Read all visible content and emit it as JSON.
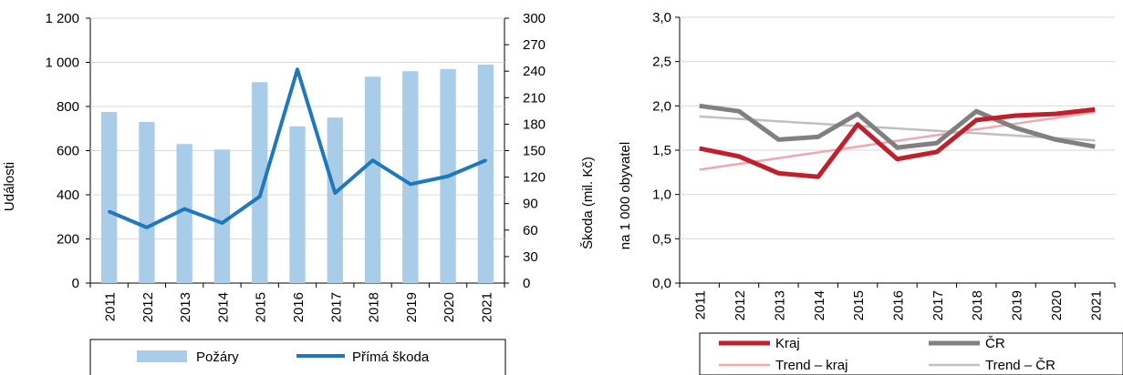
{
  "chart_data": [
    {
      "type": "bar",
      "categories": [
        "2011",
        "2012",
        "2013",
        "2014",
        "2015",
        "2016",
        "2017",
        "2018",
        "2019",
        "2020",
        "2021"
      ],
      "ylabel": "Události",
      "y2label": "Škoda (mil. Kč)",
      "ylim": [
        0,
        1200
      ],
      "y_ticks": [
        "0",
        "200",
        "400",
        "600",
        "800",
        "1 000",
        "1 200"
      ],
      "y2lim": [
        0,
        300
      ],
      "y2_ticks": [
        "0",
        "30",
        "60",
        "90",
        "120",
        "150",
        "180",
        "210",
        "240",
        "270",
        "300"
      ],
      "grid": true,
      "legend_position": "bottom",
      "series": [
        {
          "name": "Požáry",
          "type": "bar",
          "axis": "left",
          "color": "#a9cde8",
          "values": [
            775,
            730,
            630,
            605,
            910,
            710,
            750,
            935,
            960,
            970,
            990
          ]
        },
        {
          "name": "Přímá škoda",
          "type": "line",
          "axis": "right",
          "color": "#1f77bd",
          "values": [
            81,
            63,
            84,
            68,
            98,
            242,
            102,
            139,
            112,
            121,
            139
          ]
        }
      ]
    },
    {
      "type": "line",
      "categories": [
        "2011",
        "2012",
        "2013",
        "2014",
        "2015",
        "2016",
        "2017",
        "2018",
        "2019",
        "2020",
        "2021"
      ],
      "ylabel": "na 1 000 obyvatel",
      "ylim": [
        0,
        3
      ],
      "y_ticks": [
        "0,0",
        "0,5",
        "1,0",
        "1,5",
        "2,0",
        "2,5",
        "3,0"
      ],
      "grid": true,
      "legend_position": "bottom",
      "series": [
        {
          "name": "Kraj",
          "color": "#c0202b",
          "width": 5,
          "values": [
            1.52,
            1.43,
            1.24,
            1.2,
            1.79,
            1.4,
            1.48,
            1.84,
            1.89,
            1.91,
            1.96
          ]
        },
        {
          "name": "ČR",
          "color": "#808080",
          "width": 5,
          "values": [
            2.0,
            1.94,
            1.62,
            1.65,
            1.91,
            1.53,
            1.58,
            1.94,
            1.75,
            1.62,
            1.54
          ]
        },
        {
          "name": "Trend – kraj",
          "color": "#f0a8ae",
          "width": 2.5,
          "values": [
            1.28,
            1.345,
            1.41,
            1.475,
            1.54,
            1.605,
            1.67,
            1.735,
            1.8,
            1.865,
            1.93
          ]
        },
        {
          "name": "Trend – ČR",
          "color": "#c0c0c0",
          "width": 2.5,
          "values": [
            1.88,
            1.853,
            1.826,
            1.799,
            1.772,
            1.745,
            1.718,
            1.691,
            1.664,
            1.637,
            1.61
          ]
        }
      ]
    }
  ]
}
